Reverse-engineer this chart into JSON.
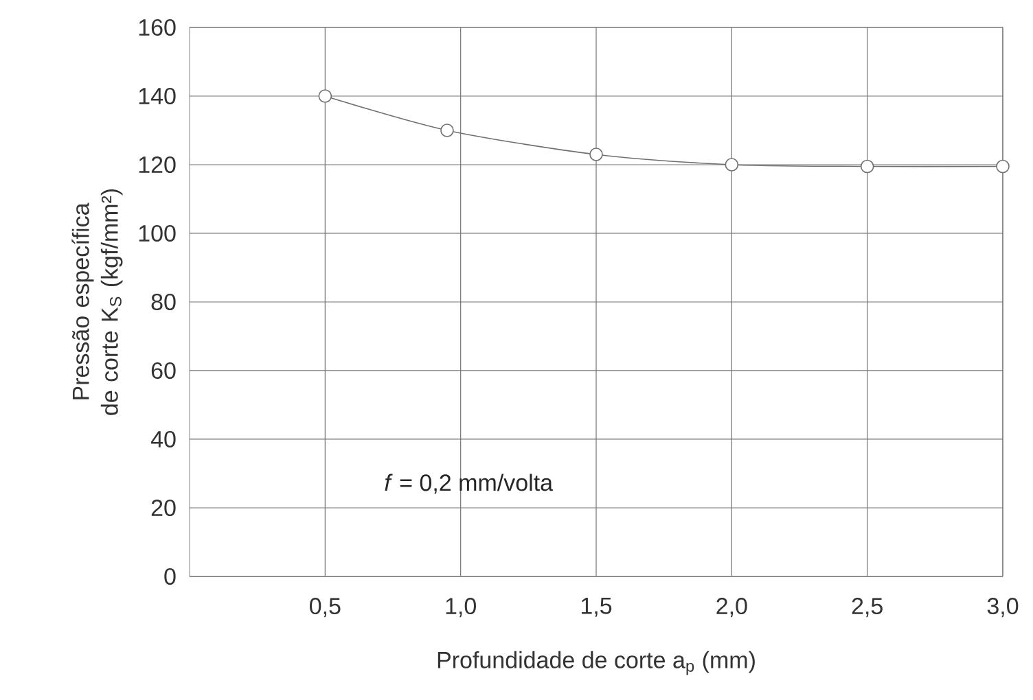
{
  "chart_data": {
    "type": "line",
    "xlabel": "Profundidade de corte a$_{p}$ (mm)",
    "ylabel": "Pressão específica de corte K$_{S}$ (kgf/mm²)",
    "x": [
      0.5,
      0.95,
      1.5,
      2.0,
      2.5,
      3.0
    ],
    "series": [
      {
        "color": "#707070",
        "values": [
          140,
          130,
          123,
          120,
          119.5,
          119.5
        ]
      }
    ],
    "xlim": [
      0,
      3
    ],
    "xticks": [
      {
        "value": 0.5,
        "label": "0,5"
      },
      {
        "value": 1.0,
        "label": "1,0"
      },
      {
        "value": 1.5,
        "label": "1,5"
      },
      {
        "value": 2.0,
        "label": "2,0"
      },
      {
        "value": 2.5,
        "label": "2,5"
      },
      {
        "value": 3.0,
        "label": "3,0"
      }
    ],
    "ylim": [
      0,
      160
    ],
    "yticks": [
      0,
      20,
      40,
      60,
      80,
      100,
      120,
      140,
      160
    ],
    "grid": true,
    "marker": "circle",
    "line_style": "solid",
    "annotations": [
      "*f* = 0,2 mm/volta"
    ]
  }
}
